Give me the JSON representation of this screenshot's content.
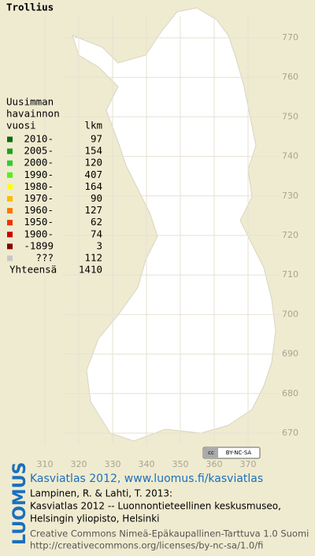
{
  "title": "Trollius",
  "legend": {
    "heading": [
      "Uusimman",
      "havainnon",
      "vuosi"
    ],
    "count_heading": "lkm",
    "entries": [
      {
        "label": "2010-",
        "count": 97,
        "color": "#0a6e0a"
      },
      {
        "label": "2005-",
        "count": 154,
        "color": "#1fa01f"
      },
      {
        "label": "2000-",
        "count": 120,
        "color": "#33cc33"
      },
      {
        "label": "1990-",
        "count": 407,
        "color": "#55ee22"
      },
      {
        "label": "1980-",
        "count": 164,
        "color": "#ffff00"
      },
      {
        "label": "1970-",
        "count": 90,
        "color": "#ffbb00"
      },
      {
        "label": "1960-",
        "count": 127,
        "color": "#ff7700"
      },
      {
        "label": "1950-",
        "count": 62,
        "color": "#ee3300"
      },
      {
        "label": "1900-",
        "count": 74,
        "color": "#cc0000"
      },
      {
        "label": "-1899",
        "count": 3,
        "color": "#880000"
      },
      {
        "label": "???",
        "count": 112,
        "color": "#c8c8c8"
      }
    ],
    "total_label": "Yhteensä",
    "total": 1410
  },
  "x_ticks": [
    310,
    320,
    330,
    340,
    350,
    360,
    370
  ],
  "y_ticks": [
    770,
    760,
    750,
    740,
    730,
    720,
    710,
    700,
    690,
    680,
    670
  ],
  "footer": {
    "brand": "LUOMUS",
    "headline": "Kasviatlas 2012, www.luomus.fi/kasviatlas",
    "citation": [
      "Lampinen, R. & Lahti, T. 2013:",
      "Kasviatlas 2012 -- Luonnontieteellinen keskusmuseo,",
      "Helsingin yliopisto, Helsinki"
    ],
    "license": [
      "Creative Commons Nimeä-Epäkaupallinen-Tarttuva 1.0 Suomi",
      "http://creativecommons.org/licenses/by-nc-sa/1.0/fi"
    ]
  }
}
